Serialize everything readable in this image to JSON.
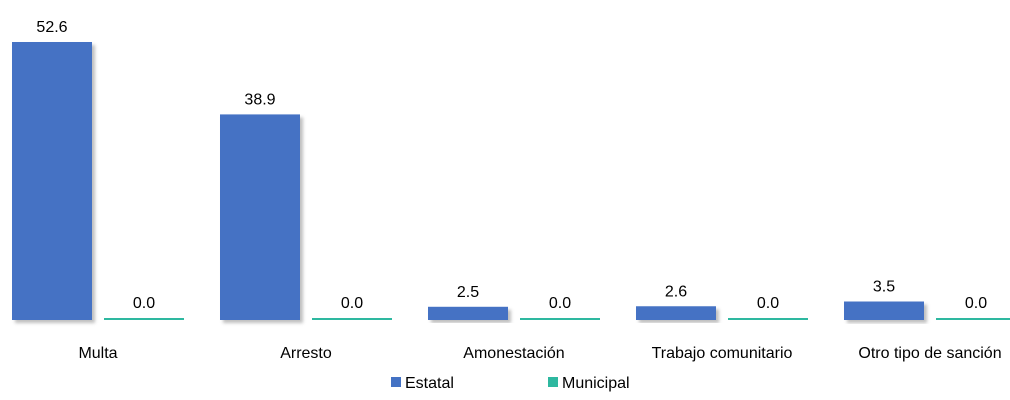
{
  "chart_data": {
    "type": "bar",
    "categories": [
      "Multa",
      "Arresto",
      "Amonestación",
      "Trabajo comunitario",
      "Otro tipo de sanción"
    ],
    "series": [
      {
        "name": "Estatal",
        "values": [
          52.6,
          38.9,
          2.5,
          2.6,
          3.5
        ],
        "color": "#4472C4"
      },
      {
        "name": "Municipal",
        "values": [
          0.0,
          0.0,
          0.0,
          0.0,
          0.0
        ],
        "color": "#2EB8A0"
      }
    ],
    "value_labels": {
      "Estatal": [
        "52.6",
        "38.9",
        "2.5",
        "2.6",
        "3.5"
      ],
      "Municipal": [
        "0.0",
        "0.0",
        "0.0",
        "0.0",
        "0.0"
      ]
    },
    "ylim": [
      0,
      55
    ],
    "grid": false,
    "legend_position": "bottom-center"
  }
}
